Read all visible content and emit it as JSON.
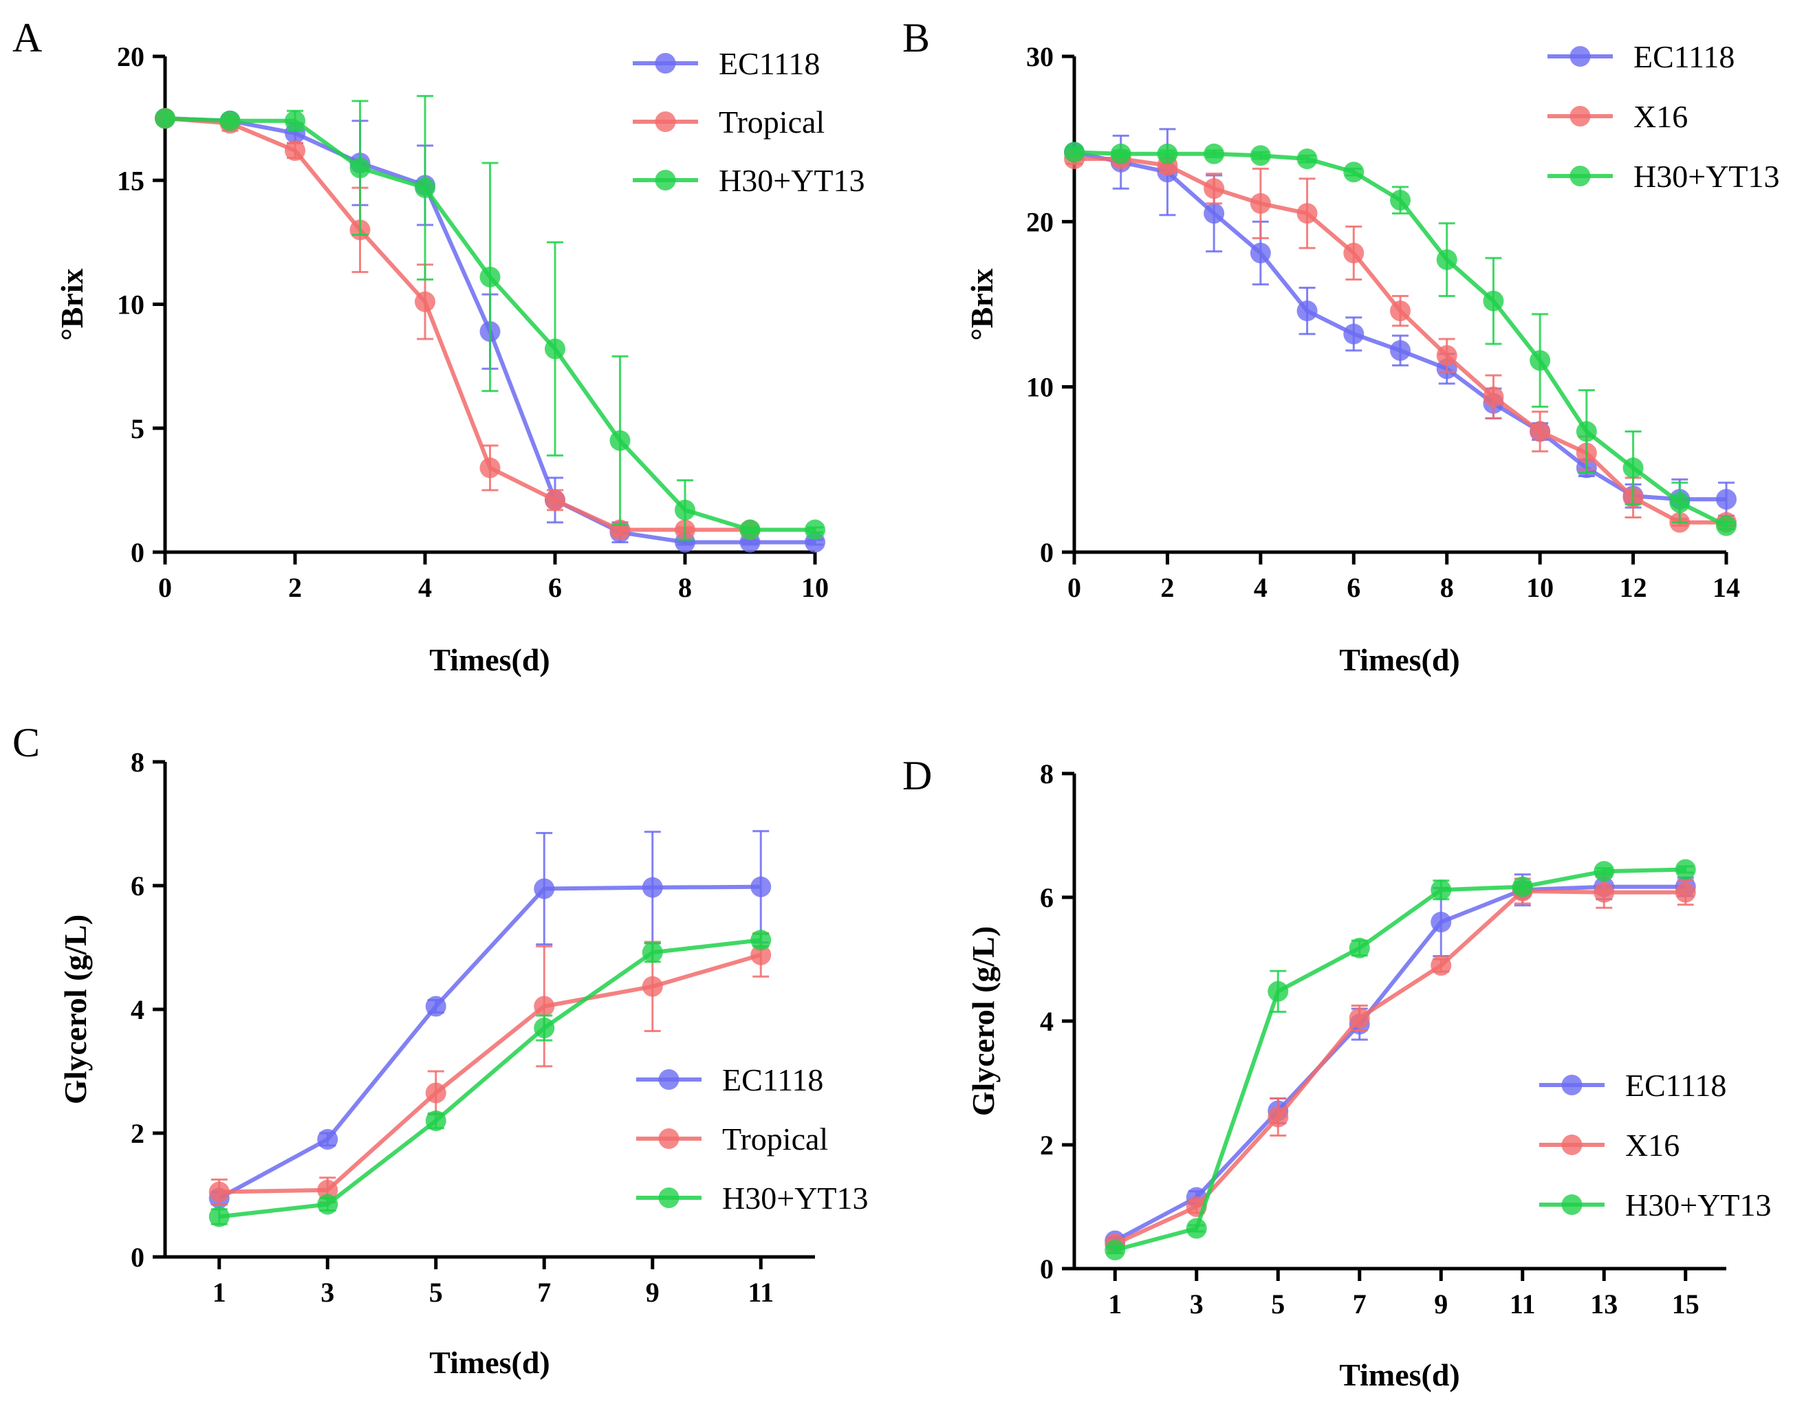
{
  "colors": {
    "EC1118": "#6b6bf2",
    "Tropical": "#f26b6b",
    "X16": "#f26b6b",
    "H30+YT13": "#1fd14a"
  },
  "chart_data": [
    {
      "panel": "A",
      "type": "line",
      "xlabel": "Times(d)",
      "ylabel": "°Brix",
      "xlim": [
        0,
        10
      ],
      "ylim": [
        0,
        20
      ],
      "xticks": [
        0,
        2,
        4,
        6,
        8,
        10
      ],
      "yticks": [
        0,
        5,
        10,
        15,
        20
      ],
      "legend_position": "top-right",
      "series": [
        {
          "name": "EC1118",
          "x": [
            0,
            1,
            2,
            3,
            4,
            5,
            6,
            7,
            8,
            9,
            10
          ],
          "values": [
            17.5,
            17.4,
            16.9,
            15.7,
            14.8,
            8.9,
            2.1,
            0.8,
            0.4,
            0.4,
            0.4
          ],
          "errors": [
            0.2,
            0.2,
            0.4,
            1.7,
            1.6,
            1.5,
            0.9,
            0.4,
            0.1,
            0.1,
            0.1
          ]
        },
        {
          "name": "Tropical",
          "x": [
            0,
            1,
            2,
            3,
            4,
            5,
            6,
            7,
            8,
            9
          ],
          "values": [
            17.5,
            17.3,
            16.2,
            13.0,
            10.1,
            3.4,
            2.1,
            0.9,
            0.9,
            0.9
          ],
          "errors": [
            0.2,
            0.3,
            0.3,
            1.7,
            1.5,
            0.9,
            0.4,
            0.2,
            0.1,
            0.1
          ]
        },
        {
          "name": "H30+YT13",
          "x": [
            0,
            1,
            2,
            3,
            4,
            5,
            6,
            7,
            8,
            9,
            10
          ],
          "values": [
            17.5,
            17.4,
            17.4,
            15.5,
            14.7,
            11.1,
            8.2,
            4.5,
            1.7,
            0.9,
            0.9
          ],
          "errors": [
            0.2,
            0.2,
            0.4,
            2.7,
            3.7,
            4.6,
            4.3,
            3.4,
            1.2,
            0.1,
            0.1
          ]
        }
      ]
    },
    {
      "panel": "B",
      "type": "line",
      "xlabel": "Times(d)",
      "ylabel": "°Brix",
      "xlim": [
        0,
        14
      ],
      "ylim": [
        0,
        30
      ],
      "xticks": [
        0,
        2,
        4,
        6,
        8,
        10,
        12,
        14
      ],
      "yticks": [
        0,
        10,
        20,
        30
      ],
      "legend_position": "top-right",
      "series": [
        {
          "name": "EC1118",
          "x": [
            0,
            1,
            2,
            3,
            4,
            5,
            6,
            7,
            8,
            9,
            10,
            11,
            12,
            13,
            14
          ],
          "values": [
            24.2,
            23.6,
            23.0,
            20.5,
            18.1,
            14.6,
            13.2,
            12.2,
            11.1,
            9.0,
            7.3,
            5.1,
            3.4,
            3.2,
            3.2
          ],
          "errors": [
            0.3,
            1.6,
            2.6,
            2.3,
            1.9,
            1.4,
            1.0,
            0.9,
            0.9,
            0.9,
            0.5,
            0.5,
            0.7,
            1.2,
            1.0
          ]
        },
        {
          "name": "X16",
          "x": [
            0,
            1,
            2,
            3,
            4,
            5,
            6,
            7,
            8,
            9,
            10,
            11,
            12,
            13,
            14
          ],
          "values": [
            23.8,
            23.8,
            23.4,
            22.0,
            21.1,
            20.5,
            18.1,
            14.6,
            11.9,
            9.4,
            7.3,
            6.0,
            3.3,
            1.8,
            1.8
          ],
          "errors": [
            0.3,
            0.4,
            0.4,
            0.9,
            2.1,
            2.1,
            1.6,
            0.9,
            1.0,
            1.3,
            1.2,
            1.0,
            1.2,
            0.2,
            0.2
          ]
        },
        {
          "name": "H30+YT13",
          "x": [
            0,
            1,
            2,
            3,
            4,
            5,
            6,
            7,
            8,
            9,
            10,
            11,
            12,
            13,
            14
          ],
          "values": [
            24.2,
            24.1,
            24.1,
            24.1,
            24.0,
            23.8,
            23.0,
            21.3,
            17.7,
            15.2,
            11.6,
            7.3,
            5.1,
            3.0,
            1.6
          ],
          "errors": [
            0.2,
            0.2,
            0.2,
            0.2,
            0.2,
            0.2,
            0.2,
            0.8,
            2.2,
            2.6,
            2.8,
            2.5,
            2.2,
            1.2,
            0.2
          ]
        }
      ]
    },
    {
      "panel": "C",
      "type": "line",
      "xlabel": "Times(d)",
      "ylabel": "Glycerol (g/L)",
      "xlim": [
        0,
        12
      ],
      "ylim": [
        0,
        8
      ],
      "xticks": [
        1,
        3,
        5,
        7,
        9,
        11
      ],
      "yticks": [
        0,
        2,
        4,
        6,
        8
      ],
      "legend_position": "bottom-right",
      "series": [
        {
          "name": "EC1118",
          "x": [
            1,
            3,
            5,
            7,
            9,
            11
          ],
          "values": [
            0.95,
            1.9,
            4.05,
            5.95,
            5.97,
            5.98
          ],
          "errors": [
            0.1,
            0.1,
            0.1,
            0.9,
            0.9,
            0.9
          ]
        },
        {
          "name": "Tropical",
          "x": [
            1,
            3,
            5,
            7,
            9,
            11
          ],
          "values": [
            1.05,
            1.08,
            2.65,
            4.05,
            4.37,
            4.88
          ],
          "errors": [
            0.2,
            0.2,
            0.35,
            0.97,
            0.72,
            0.35
          ]
        },
        {
          "name": "H30+YT13",
          "x": [
            1,
            3,
            5,
            7,
            9,
            11
          ],
          "values": [
            0.65,
            0.85,
            2.2,
            3.7,
            4.92,
            5.12
          ],
          "errors": [
            0.12,
            0.1,
            0.12,
            0.2,
            0.15,
            0.1
          ]
        }
      ]
    },
    {
      "panel": "D",
      "type": "line",
      "xlabel": "Times(d)",
      "ylabel": "Glycerol (g/L)",
      "xlim": [
        0,
        16
      ],
      "ylim": [
        0,
        8
      ],
      "xticks": [
        1,
        3,
        5,
        7,
        9,
        11,
        13,
        15
      ],
      "yticks": [
        0,
        2,
        4,
        6,
        8
      ],
      "legend_position": "bottom-right",
      "series": [
        {
          "name": "EC1118",
          "x": [
            1,
            3,
            5,
            7,
            9,
            11,
            13,
            15
          ],
          "values": [
            0.45,
            1.15,
            2.55,
            3.95,
            5.6,
            6.12,
            6.17,
            6.17
          ],
          "errors": [
            0.05,
            0.1,
            0.2,
            0.25,
            0.55,
            0.25,
            0.2,
            0.15
          ]
        },
        {
          "name": "X16",
          "x": [
            1,
            3,
            5,
            7,
            9,
            11,
            13,
            15
          ],
          "values": [
            0.4,
            1.0,
            2.45,
            4.05,
            4.9,
            6.1,
            6.08,
            6.08
          ],
          "errors": [
            0.05,
            0.1,
            0.3,
            0.2,
            0.1,
            0.2,
            0.25,
            0.2
          ]
        },
        {
          "name": "H30+YT13",
          "x": [
            1,
            3,
            5,
            7,
            9,
            11,
            13,
            15
          ],
          "values": [
            0.3,
            0.65,
            4.48,
            5.18,
            6.12,
            6.17,
            6.42,
            6.45
          ],
          "errors": [
            0.05,
            0.05,
            0.33,
            0.12,
            0.15,
            0.08,
            0.05,
            0.05
          ]
        }
      ]
    }
  ]
}
